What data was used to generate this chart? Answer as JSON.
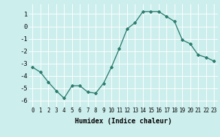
{
  "x": [
    0,
    1,
    2,
    3,
    4,
    5,
    6,
    7,
    8,
    9,
    10,
    11,
    12,
    13,
    14,
    15,
    16,
    17,
    18,
    19,
    20,
    21,
    22,
    23
  ],
  "y": [
    -3.3,
    -3.7,
    -4.5,
    -5.2,
    -5.8,
    -4.8,
    -4.8,
    -5.3,
    -5.4,
    -4.6,
    -3.3,
    -1.8,
    -0.2,
    0.3,
    1.2,
    1.2,
    1.2,
    0.8,
    0.4,
    -1.1,
    -1.4,
    -2.3,
    -2.5,
    -2.8
  ],
  "xlabel": "Humidex (Indice chaleur)",
  "xlim": [
    -0.5,
    23.5
  ],
  "ylim": [
    -6.5,
    1.8
  ],
  "yticks": [
    -6,
    -5,
    -4,
    -3,
    -2,
    -1,
    0,
    1
  ],
  "xticks": [
    0,
    1,
    2,
    3,
    4,
    5,
    6,
    7,
    8,
    9,
    10,
    11,
    12,
    13,
    14,
    15,
    16,
    17,
    18,
    19,
    20,
    21,
    22,
    23
  ],
  "line_color": "#2d7d6f",
  "marker": "D",
  "marker_size": 2.0,
  "bg_color": "#cceeed",
  "grid_color": "#ffffff",
  "font_family": "monospace",
  "tick_fontsize": 5.5,
  "xlabel_fontsize": 7.0,
  "linewidth": 1.0
}
